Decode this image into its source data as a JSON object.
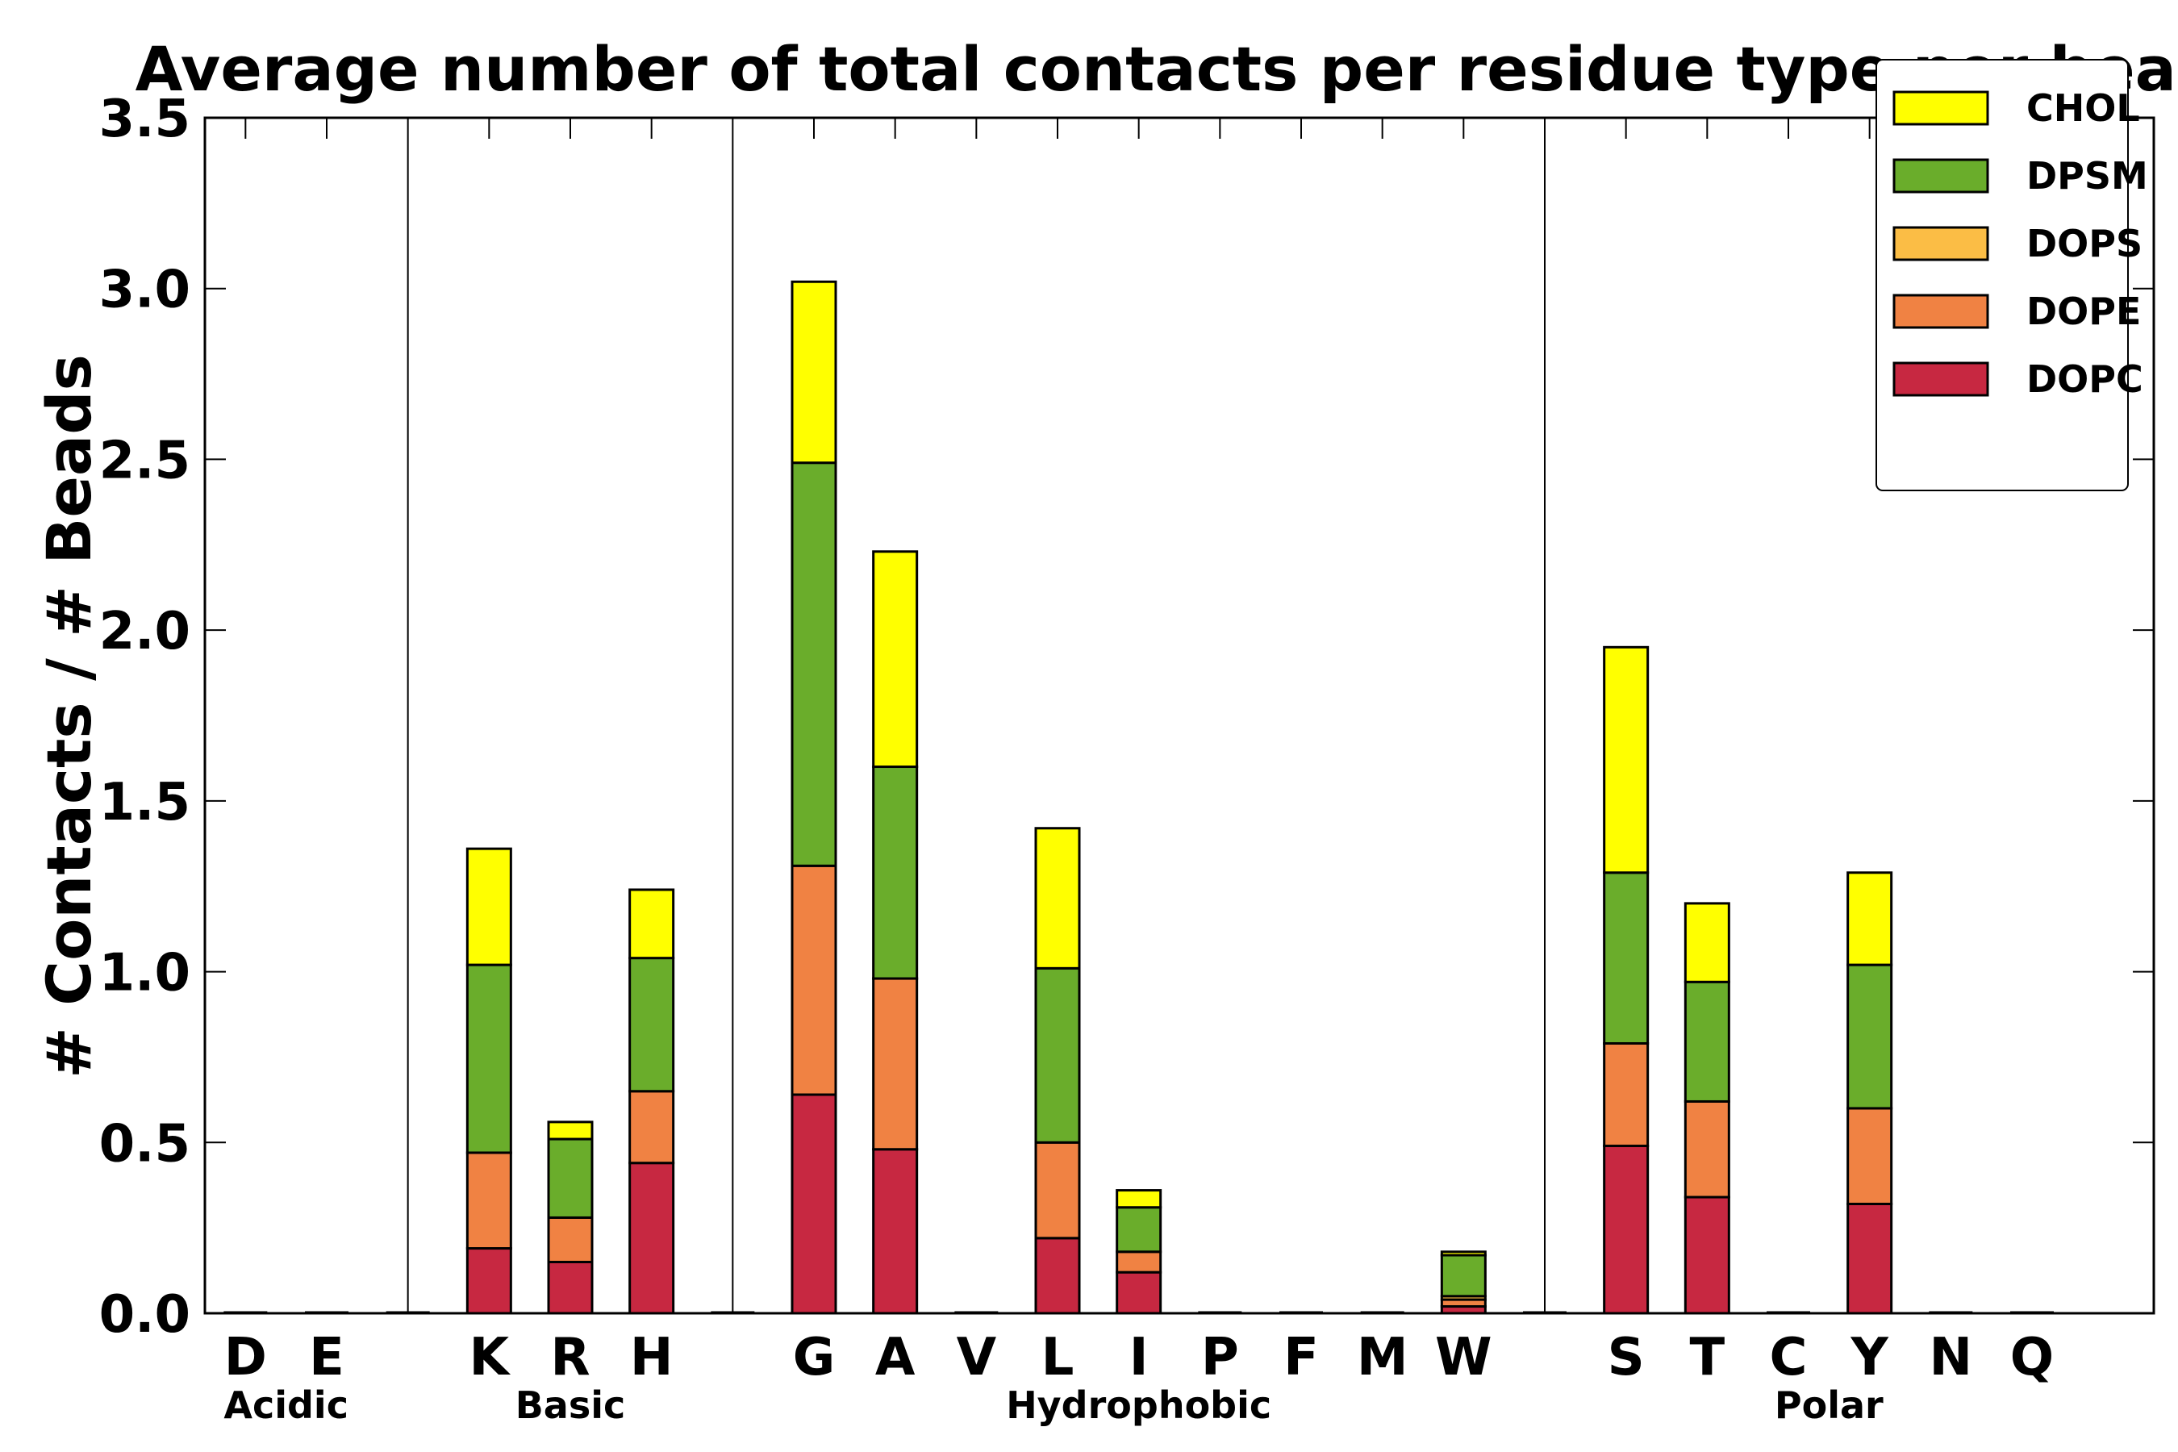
{
  "chart_data": {
    "type": "bar",
    "stacked": true,
    "title": "Average number of total contacts per residue type per bead",
    "xlabel": "",
    "ylabel": "# Contacts / # Beads",
    "ylim": [
      0,
      3.5
    ],
    "yticks": [
      "0.0",
      "0.5",
      "1.0",
      "1.5",
      "2.0",
      "2.5",
      "3.0",
      "3.5"
    ],
    "categories": [
      "D",
      "E",
      "K",
      "R",
      "H",
      "G",
      "A",
      "V",
      "L",
      "I",
      "P",
      "F",
      "M",
      "W",
      "S",
      "T",
      "C",
      "Y",
      "N",
      "Q"
    ],
    "groups": [
      {
        "label": "Acidic",
        "members": [
          "D",
          "E"
        ]
      },
      {
        "label": "Basic",
        "members": [
          "K",
          "R",
          "H"
        ]
      },
      {
        "label": "Hydrophobic",
        "members": [
          "G",
          "A",
          "V",
          "L",
          "I",
          "P",
          "F",
          "M",
          "W"
        ]
      },
      {
        "label": "Polar",
        "members": [
          "S",
          "T",
          "C",
          "Y",
          "N",
          "Q"
        ]
      }
    ],
    "series": [
      {
        "name": "DOPC",
        "color": "#c72841",
        "values": [
          0,
          0,
          0.19,
          0.15,
          0.44,
          0.64,
          0.48,
          0,
          0.22,
          0.12,
          0,
          0,
          0,
          0.02,
          0.49,
          0.34,
          0,
          0.32,
          0,
          0
        ]
      },
      {
        "name": "DOPE",
        "color": "#f08243",
        "values": [
          0,
          0,
          0.28,
          0.13,
          0.21,
          0.67,
          0.5,
          0,
          0.28,
          0.06,
          0,
          0,
          0,
          0.02,
          0.3,
          0.28,
          0,
          0.28,
          0,
          0
        ]
      },
      {
        "name": "DOPS",
        "color": "#fbbd45",
        "values": [
          0,
          0,
          0,
          0,
          0,
          0,
          0,
          0,
          0,
          0,
          0,
          0,
          0,
          0.01,
          0,
          0,
          0,
          0,
          0,
          0
        ]
      },
      {
        "name": "DPSM",
        "color": "#6aad2b",
        "values": [
          0,
          0,
          0.55,
          0.23,
          0.39,
          1.18,
          0.62,
          0,
          0.51,
          0.13,
          0,
          0,
          0,
          0.12,
          0.5,
          0.35,
          0,
          0.42,
          0,
          0
        ]
      },
      {
        "name": "CHOL",
        "color": "#ffff00",
        "values": [
          0,
          0,
          0.34,
          0.05,
          0.2,
          0.53,
          0.63,
          0,
          0.41,
          0.05,
          0,
          0,
          0,
          0.01,
          0.66,
          0.23,
          0,
          0.27,
          0,
          0
        ]
      }
    ],
    "legend_order": [
      "CHOL",
      "DPSM",
      "DOPS",
      "DOPE",
      "DOPC"
    ],
    "legend_position": "top-right",
    "grid": false
  }
}
